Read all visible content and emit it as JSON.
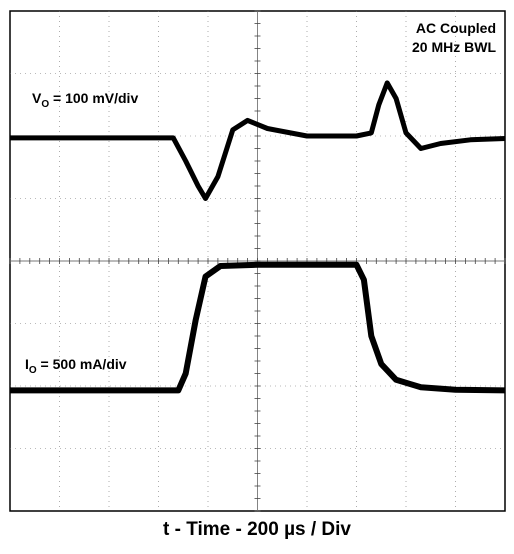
{
  "chart_data": {
    "type": "line",
    "title": "",
    "xlabel": "t - Time - 200 µs / Div",
    "grid": true,
    "annotation": [
      "AC Coupled",
      "20 MHz BWL"
    ],
    "x_divisions": 10,
    "y_divisions": 8,
    "series": [
      {
        "name": "VO = 100 mV/div",
        "label_main": "V",
        "label_sub": "O",
        "label_rest": " = 100 mV/div",
        "units": "div",
        "x": [
          0,
          2.0,
          3.3,
          3.55,
          3.8,
          3.95,
          4.2,
          4.5,
          4.8,
          5.2,
          6.0,
          7.0,
          7.3,
          7.45,
          7.62,
          7.8,
          8.0,
          8.3,
          8.7,
          9.3,
          10
        ],
        "y": [
          1.97,
          1.97,
          1.97,
          1.6,
          1.2,
          1.0,
          1.35,
          2.1,
          2.25,
          2.12,
          2.0,
          2.0,
          2.05,
          2.5,
          2.85,
          2.6,
          2.05,
          1.8,
          1.88,
          1.94,
          1.96
        ]
      },
      {
        "name": "IO = 500 mA/div",
        "label_main": "I",
        "label_sub": "O",
        "label_rest": " = 500 mA/div",
        "units": "div",
        "x": [
          0,
          3.4,
          3.55,
          3.75,
          3.95,
          4.25,
          5.0,
          6.0,
          7.0,
          7.15,
          7.3,
          7.5,
          7.8,
          8.3,
          9.0,
          10
        ],
        "y": [
          -2.07,
          -2.07,
          -1.8,
          -0.95,
          -0.25,
          -0.08,
          -0.06,
          -0.06,
          -0.06,
          -0.3,
          -1.2,
          -1.65,
          -1.9,
          -2.02,
          -2.06,
          -2.07
        ]
      }
    ]
  }
}
